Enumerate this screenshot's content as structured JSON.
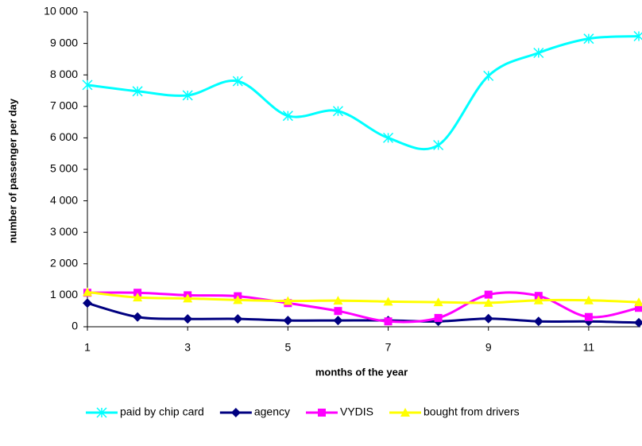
{
  "chart_data": {
    "type": "line",
    "x_label": "months of the year",
    "y_label": "number of passenger per day",
    "x": [
      1,
      2,
      3,
      4,
      5,
      6,
      7,
      8,
      9,
      10,
      11,
      12
    ],
    "xlim": [
      1,
      12
    ],
    "xticks": [
      1,
      3,
      5,
      7,
      9,
      11
    ],
    "ylim": [
      0,
      10000
    ],
    "yticks": [
      0,
      {
        "value": 1000,
        "label": "1 000"
      },
      {
        "value": 2000,
        "label": "2 000"
      },
      {
        "value": 3000,
        "label": "3 000"
      },
      {
        "value": 4000,
        "label": "4 000"
      },
      {
        "value": 5000,
        "label": "5 000"
      },
      {
        "value": 6000,
        "label": "6 000"
      },
      {
        "value": 7000,
        "label": "7 000"
      },
      {
        "value": 8000,
        "label": "8 000"
      },
      {
        "value": 9000,
        "label": "9 000"
      },
      {
        "value": 10000,
        "label": "10 000"
      }
    ],
    "smooth": true,
    "legend": "bottom",
    "series": [
      {
        "name": "paid by chip card",
        "color": "#00ffff",
        "marker": "x",
        "values": [
          7680,
          7480,
          7350,
          7800,
          6700,
          6850,
          6000,
          5770,
          7970,
          8700,
          9150,
          9230
        ]
      },
      {
        "name": "agency",
        "color": "#000080",
        "marker": "diamond",
        "values": [
          750,
          310,
          250,
          250,
          200,
          200,
          200,
          170,
          260,
          170,
          170,
          130
        ]
      },
      {
        "name": "VYDIS",
        "color": "#ff00ff",
        "marker": "square",
        "values": [
          1080,
          1080,
          1000,
          970,
          750,
          500,
          170,
          280,
          1020,
          980,
          310,
          600
        ]
      },
      {
        "name": "bought from drivers",
        "color": "#ffff00",
        "marker": "triangle",
        "values": [
          1100,
          930,
          900,
          850,
          820,
          830,
          800,
          780,
          760,
          840,
          840,
          780
        ]
      }
    ]
  }
}
